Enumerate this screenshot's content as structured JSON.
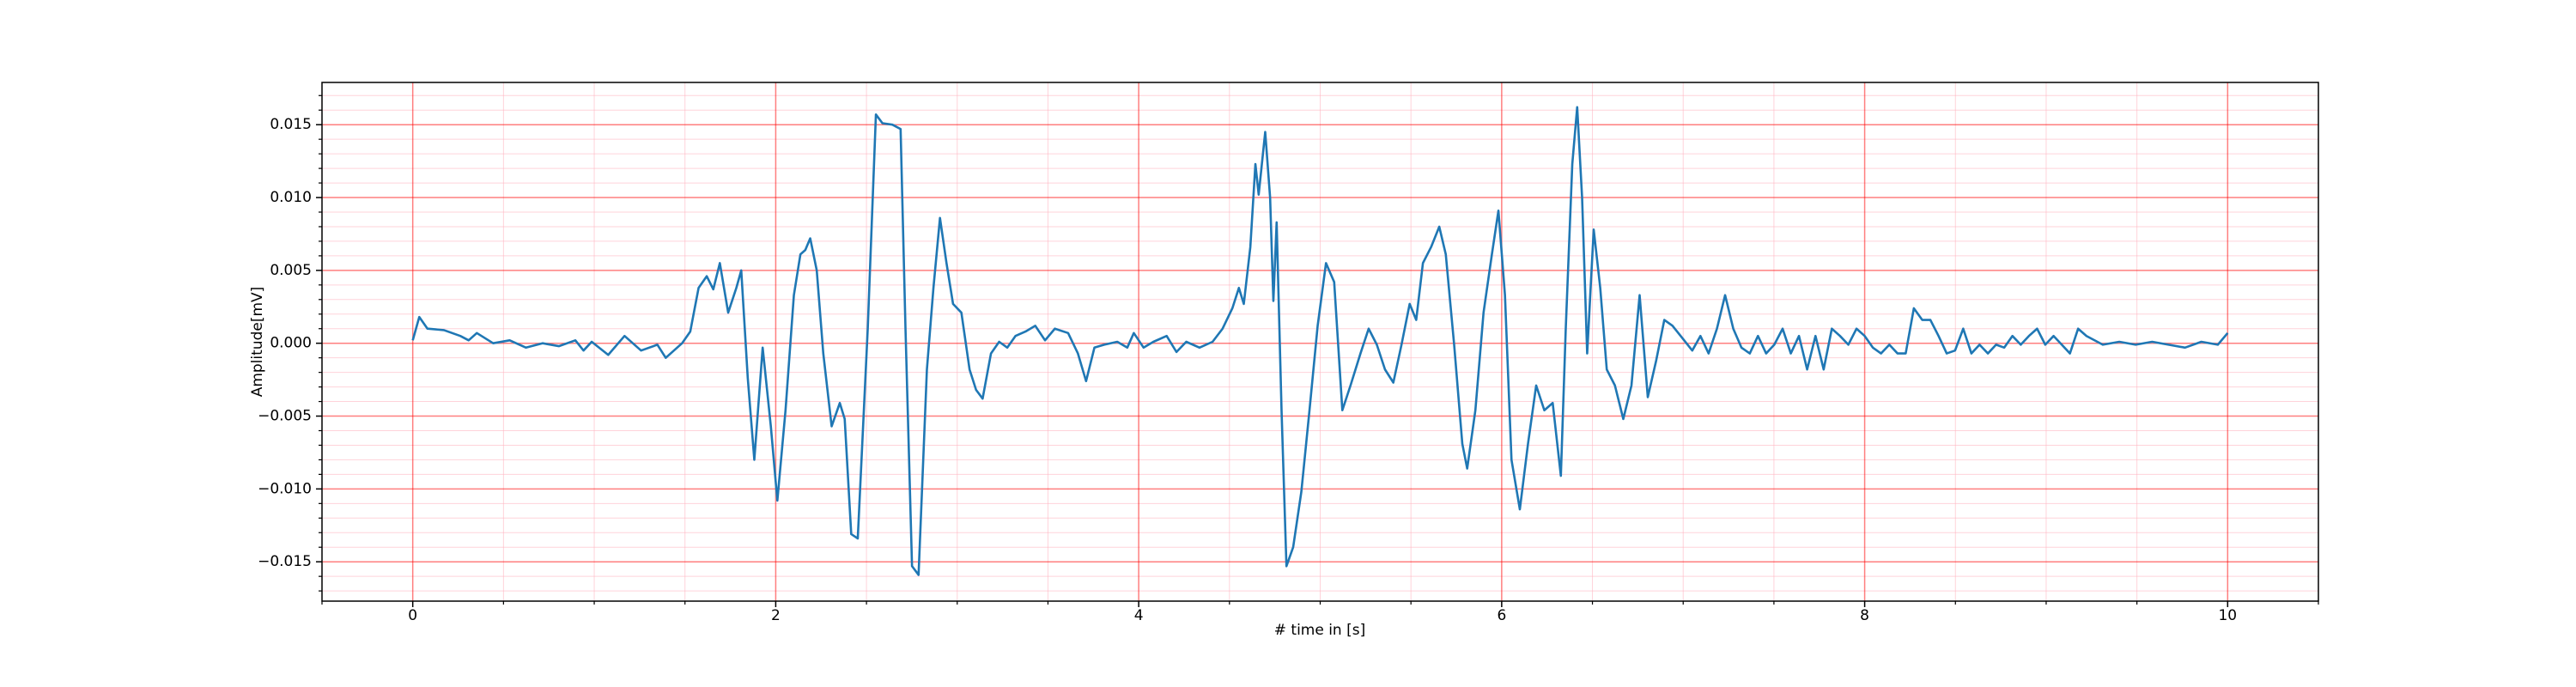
{
  "chart_data": {
    "type": "line",
    "xlabel": "# time in [s]",
    "ylabel": "Amplitude[mV]",
    "xlim": [
      -0.5,
      10.5
    ],
    "ylim": [
      -0.0177,
      0.0179
    ],
    "xticks": [
      0,
      2,
      4,
      6,
      8,
      10
    ],
    "yticks": [
      {
        "value": -0.015,
        "label": "−0.015"
      },
      {
        "value": -0.01,
        "label": "−0.010"
      },
      {
        "value": -0.005,
        "label": "−0.005"
      },
      {
        "value": 0,
        "label": "0.000"
      },
      {
        "value": 0.005,
        "label": "0.005"
      },
      {
        "value": 0.01,
        "label": "0.010"
      },
      {
        "value": 0.015,
        "label": "0.015"
      }
    ],
    "xminor_ticks": [
      -0.5,
      0.5,
      1,
      1.5,
      2.5,
      3,
      3.5,
      4.5,
      5,
      5.5,
      6.5,
      7,
      7.5,
      8.5,
      9,
      9.5,
      10.5
    ],
    "yminor_ticks": [
      -0.017,
      -0.016,
      -0.014,
      -0.013,
      -0.012,
      -0.011,
      -0.009,
      -0.008,
      -0.007,
      -0.006,
      -0.004,
      -0.003,
      -0.002,
      -0.001,
      0.001,
      0.002,
      0.003,
      0.004,
      0.006,
      0.007,
      0.008,
      0.009,
      0.011,
      0.012,
      0.013,
      0.014,
      0.016,
      0.017
    ],
    "grid": true,
    "minor_grid": true,
    "grid_color": "#ff0000",
    "minor_grid_color": "#ffb6c1",
    "series": [
      {
        "color": "#1f77b4",
        "x": [
          0.0,
          0.036,
          0.081,
          0.172,
          0.262,
          0.308,
          0.353,
          0.443,
          0.534,
          0.624,
          0.715,
          0.805,
          0.896,
          0.941,
          0.986,
          1.077,
          1.167,
          1.258,
          1.348,
          1.394,
          1.484,
          1.529,
          1.575,
          1.62,
          1.656,
          1.692,
          1.738,
          1.783,
          1.81,
          1.846,
          1.882,
          1.928,
          1.973,
          2.009,
          2.054,
          2.1,
          2.136,
          2.163,
          2.19,
          2.226,
          2.262,
          2.308,
          2.353,
          2.38,
          2.416,
          2.452,
          2.507,
          2.552,
          2.588,
          2.643,
          2.688,
          2.715,
          2.751,
          2.787,
          2.833,
          2.869,
          2.905,
          2.941,
          2.977,
          3.023,
          3.068,
          3.104,
          3.14,
          3.186,
          3.231,
          3.276,
          3.321,
          3.376,
          3.43,
          3.484,
          3.538,
          3.611,
          3.665,
          3.71,
          3.756,
          3.81,
          3.882,
          3.937,
          3.973,
          4.027,
          4.081,
          4.154,
          4.208,
          4.262,
          4.335,
          4.407,
          4.462,
          4.516,
          4.552,
          4.579,
          4.615,
          4.643,
          4.661,
          4.697,
          4.724,
          4.742,
          4.76,
          4.787,
          4.814,
          4.851,
          4.896,
          4.941,
          4.986,
          5.032,
          5.077,
          5.122,
          5.167,
          5.222,
          5.267,
          5.312,
          5.357,
          5.403,
          5.448,
          5.493,
          5.529,
          5.566,
          5.611,
          5.656,
          5.692,
          5.738,
          5.783,
          5.81,
          5.855,
          5.9,
          5.946,
          5.982,
          6.018,
          6.054,
          6.1,
          6.145,
          6.19,
          6.235,
          6.281,
          6.326,
          6.353,
          6.389,
          6.416,
          6.443,
          6.471,
          6.507,
          6.543,
          6.579,
          6.624,
          6.67,
          6.715,
          6.76,
          6.805,
          6.851,
          6.896,
          6.941,
          6.986,
          7.05,
          7.095,
          7.14,
          7.186,
          7.231,
          7.276,
          7.321,
          7.367,
          7.412,
          7.457,
          7.502,
          7.548,
          7.593,
          7.638,
          7.683,
          7.729,
          7.774,
          7.819,
          7.864,
          7.91,
          7.955,
          8.0,
          8.045,
          8.09,
          8.136,
          8.181,
          8.226,
          8.271,
          8.317,
          8.362,
          8.407,
          8.452,
          8.498,
          8.543,
          8.588,
          8.633,
          8.679,
          8.724,
          8.769,
          8.814,
          8.86,
          8.905,
          8.95,
          8.995,
          9.041,
          9.086,
          9.131,
          9.176,
          9.222,
          9.312,
          9.403,
          9.493,
          9.584,
          9.674,
          9.765,
          9.855,
          9.946,
          10.0
        ],
        "values": [
          0.0002,
          0.0018,
          0.001,
          0.0009,
          0.0005,
          0.0002,
          0.0007,
          0.0,
          0.0002,
          -0.0003,
          0.0,
          -0.0002,
          0.0002,
          -0.0005,
          0.0001,
          -0.0008,
          0.0005,
          -0.0005,
          -0.0001,
          -0.001,
          0.0,
          0.0008,
          0.0038,
          0.0046,
          0.0037,
          0.0055,
          0.0021,
          0.0038,
          0.005,
          -0.0024,
          -0.008,
          -0.0003,
          -0.0057,
          -0.0108,
          -0.0046,
          0.0033,
          0.0061,
          0.0064,
          0.0072,
          0.005,
          -0.0007,
          -0.0057,
          -0.0041,
          -0.0052,
          -0.0131,
          -0.0134,
          0.001,
          0.0157,
          0.0151,
          0.015,
          0.0147,
          0.001,
          -0.0153,
          -0.0159,
          -0.0018,
          0.0038,
          0.0086,
          0.0055,
          0.0027,
          0.0021,
          -0.0018,
          -0.0032,
          -0.0038,
          -0.0007,
          0.0001,
          -0.0003,
          0.0005,
          0.0008,
          0.0012,
          0.0002,
          0.001,
          0.0007,
          -0.0007,
          -0.0026,
          -0.0003,
          -0.0001,
          0.0001,
          -0.0003,
          0.0007,
          -0.0003,
          0.0001,
          0.0005,
          -0.0006,
          0.0001,
          -0.0003,
          0.0001,
          0.001,
          0.0024,
          0.0038,
          0.0027,
          0.0066,
          0.0123,
          0.0102,
          0.0145,
          0.01,
          0.0029,
          0.0083,
          -0.0046,
          -0.0153,
          -0.014,
          -0.0102,
          -0.0046,
          0.0012,
          0.0055,
          0.0042,
          -0.0046,
          -0.0029,
          -0.0007,
          0.001,
          -0.0001,
          -0.0018,
          -0.0027,
          -0.0001,
          0.0027,
          0.0016,
          0.0055,
          0.0066,
          0.008,
          0.0061,
          -0.0001,
          -0.0069,
          -0.0086,
          -0.0046,
          0.0021,
          0.0061,
          0.0091,
          0.0033,
          -0.008,
          -0.0114,
          -0.0069,
          -0.0029,
          -0.0046,
          -0.0041,
          -0.0091,
          0.001,
          0.0123,
          0.0162,
          0.01,
          -0.0007,
          0.0078,
          0.0038,
          -0.0018,
          -0.0029,
          -0.0052,
          -0.0029,
          0.0033,
          -0.0037,
          -0.0012,
          0.0016,
          0.0012,
          0.0005,
          -0.0005,
          0.0005,
          -0.0007,
          0.001,
          0.0033,
          0.001,
          -0.0003,
          -0.0007,
          0.0005,
          -0.0007,
          -0.0001,
          0.001,
          -0.0007,
          0.0005,
          -0.0018,
          0.0005,
          -0.0018,
          0.001,
          0.0005,
          -0.0001,
          0.001,
          0.0005,
          -0.0003,
          -0.0007,
          -0.0001,
          -0.0007,
          -0.0007,
          0.0024,
          0.0016,
          0.0016,
          0.0005,
          -0.0007,
          -0.0005,
          0.001,
          -0.0007,
          -0.0001,
          -0.0007,
          -0.0001,
          -0.0003,
          0.0005,
          -0.0001,
          0.0005,
          0.001,
          -0.0001,
          0.0005,
          -0.0001,
          -0.0007,
          0.001,
          0.0005,
          -0.0001,
          0.0001,
          -0.0001,
          0.0001,
          -0.0001,
          -0.0003,
          0.0001,
          -0.0001,
          0.0007
        ]
      }
    ]
  }
}
